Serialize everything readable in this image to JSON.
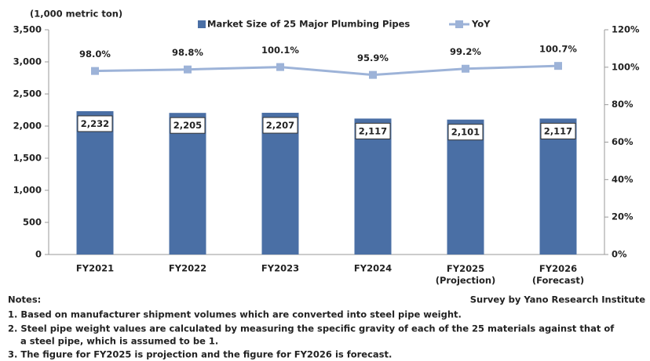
{
  "chart_data": {
    "type": "bar",
    "y_label": "(1,000 metric ton)",
    "categories": [
      "FY2021",
      "FY2022",
      "FY2023",
      "FY2024",
      "FY2025\n(Projection)",
      "FY2026\n(Forecast)"
    ],
    "series": [
      {
        "name": "Market Size of 25 Major Plumbing Pipes",
        "type": "bar",
        "color": "#4a6fa5",
        "values": [
          2232,
          2205,
          2207,
          2117,
          2101,
          2117
        ],
        "value_labels": [
          "2,232",
          "2,205",
          "2,207",
          "2,117",
          "2,101",
          "2,117"
        ]
      },
      {
        "name": "YoY",
        "type": "line",
        "axis": "y2",
        "color": "#9db3d8",
        "values": [
          98.0,
          98.8,
          100.1,
          95.9,
          99.2,
          100.7
        ],
        "value_labels": [
          "98.0%",
          "98.8%",
          "100.1%",
          "95.9%",
          "99.2%",
          "100.7%"
        ]
      }
    ],
    "ylim": [
      0,
      3500
    ],
    "yticks": [
      0,
      500,
      {
        "value": 1000,
        "label": "1,000"
      },
      {
        "value": 1500,
        "label": "1,500"
      },
      {
        "value": 2000,
        "label": "2,000"
      },
      {
        "value": 2500,
        "label": "2,500"
      },
      {
        "value": 3000,
        "label": "3,000"
      },
      {
        "value": 3500,
        "label": "3,500"
      }
    ],
    "y2lim": [
      0,
      120
    ],
    "y2ticks": [
      {
        "value": 0,
        "label": "0%"
      },
      {
        "value": 20,
        "label": "20%"
      },
      {
        "value": 40,
        "label": "40%"
      },
      {
        "value": 60,
        "label": "60%"
      },
      {
        "value": 80,
        "label": "80%"
      },
      {
        "value": 100,
        "label": "100%"
      },
      {
        "value": 120,
        "label": "120%"
      }
    ],
    "legend": "top"
  },
  "notes": {
    "title": "Notes:",
    "lines": [
      "1. Based on manufacturer shipment volumes which are converted into steel pipe weight.",
      "2. Steel pipe weight values are calculated by measuring the specific gravity of each of the 25 materials against that of",
      "a steel pipe, which is assumed to be 1.",
      "3. The figure for FY2025 is projection and the figure for FY2026 is forecast."
    ]
  },
  "source": "Survey by Yano Research Institute"
}
